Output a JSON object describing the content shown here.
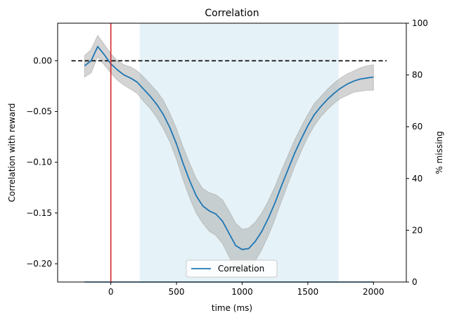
{
  "chart_data": {
    "type": "line",
    "title": "Correlation",
    "xlabel": "time (ms)",
    "ylabel": "Correlation with reward",
    "y2label": "% missing",
    "xlim": [
      -405,
      2250
    ],
    "ylim": [
      -0.218,
      0.037
    ],
    "y2lim": [
      0,
      100
    ],
    "x_ticks": [
      0,
      500,
      1000,
      1500,
      2000
    ],
    "x_tick_labels": [
      "0",
      "500",
      "1000",
      "1500",
      "2000"
    ],
    "y_ticks": [
      0.0,
      -0.05,
      -0.1,
      -0.15,
      -0.2
    ],
    "y_tick_labels": [
      "0.00",
      "−0.05",
      "−0.10",
      "−0.15",
      "−0.20"
    ],
    "y2_ticks": [
      0,
      20,
      40,
      60,
      80,
      100
    ],
    "y2_tick_labels": [
      "0",
      "20",
      "40",
      "60",
      "80",
      "100"
    ],
    "legend": {
      "placement": "lower center",
      "entries": [
        "Correlation"
      ]
    },
    "grid": false,
    "series": [
      {
        "name": "Correlation",
        "color": "#1f77b4",
        "x": [
          -200,
          -150,
          -100,
          -50,
          0,
          50,
          100,
          150,
          200,
          250,
          300,
          350,
          400,
          450,
          500,
          550,
          600,
          650,
          700,
          750,
          800,
          850,
          900,
          950,
          1000,
          1050,
          1100,
          1150,
          1200,
          1250,
          1300,
          1350,
          1400,
          1450,
          1500,
          1550,
          1600,
          1650,
          1700,
          1750,
          1800,
          1850,
          1900,
          1950,
          2000
        ],
        "y": [
          -0.005,
          0.0,
          0.014,
          0.006,
          -0.003,
          -0.009,
          -0.014,
          -0.017,
          -0.021,
          -0.028,
          -0.035,
          -0.043,
          -0.053,
          -0.066,
          -0.082,
          -0.101,
          -0.118,
          -0.133,
          -0.143,
          -0.148,
          -0.151,
          -0.158,
          -0.17,
          -0.182,
          -0.186,
          -0.185,
          -0.178,
          -0.168,
          -0.155,
          -0.14,
          -0.123,
          -0.107,
          -0.091,
          -0.077,
          -0.064,
          -0.053,
          -0.045,
          -0.038,
          -0.032,
          -0.027,
          -0.023,
          -0.02,
          -0.018,
          -0.017,
          -0.016
        ],
        "ci_lower": [
          -0.016,
          -0.012,
          0.004,
          -0.004,
          -0.012,
          -0.019,
          -0.024,
          -0.028,
          -0.032,
          -0.04,
          -0.047,
          -0.056,
          -0.067,
          -0.08,
          -0.097,
          -0.117,
          -0.135,
          -0.15,
          -0.16,
          -0.168,
          -0.172,
          -0.18,
          -0.193,
          -0.204,
          -0.207,
          -0.205,
          -0.197,
          -0.186,
          -0.172,
          -0.156,
          -0.138,
          -0.121,
          -0.104,
          -0.089,
          -0.075,
          -0.064,
          -0.055,
          -0.048,
          -0.042,
          -0.037,
          -0.034,
          -0.031,
          -0.03,
          -0.029,
          -0.029
        ],
        "ci_upper": [
          0.005,
          0.011,
          0.025,
          0.016,
          0.007,
          0.0,
          -0.004,
          -0.006,
          -0.01,
          -0.016,
          -0.023,
          -0.03,
          -0.039,
          -0.052,
          -0.067,
          -0.085,
          -0.101,
          -0.116,
          -0.126,
          -0.13,
          -0.132,
          -0.137,
          -0.148,
          -0.16,
          -0.166,
          -0.165,
          -0.159,
          -0.15,
          -0.138,
          -0.124,
          -0.108,
          -0.093,
          -0.078,
          -0.065,
          -0.053,
          -0.042,
          -0.035,
          -0.028,
          -0.022,
          -0.017,
          -0.013,
          -0.01,
          -0.007,
          -0.005,
          -0.004
        ],
        "ci_color": "#a9a9a9"
      }
    ],
    "reference_lines": {
      "horizontal_dashed_y": 0.0,
      "horizontal_dashed_x_range": [
        -300,
        2100
      ],
      "horizontal_dashed_color": "#000000",
      "vertical_x": 0,
      "vertical_color": "#d62728"
    },
    "shaded_region": {
      "x_range": [
        220,
        1735
      ],
      "color": "#add8e6"
    },
    "missing_series": {
      "color": "#1f77b4",
      "x_range": [
        -200,
        2000
      ],
      "values_pct": 0
    }
  }
}
